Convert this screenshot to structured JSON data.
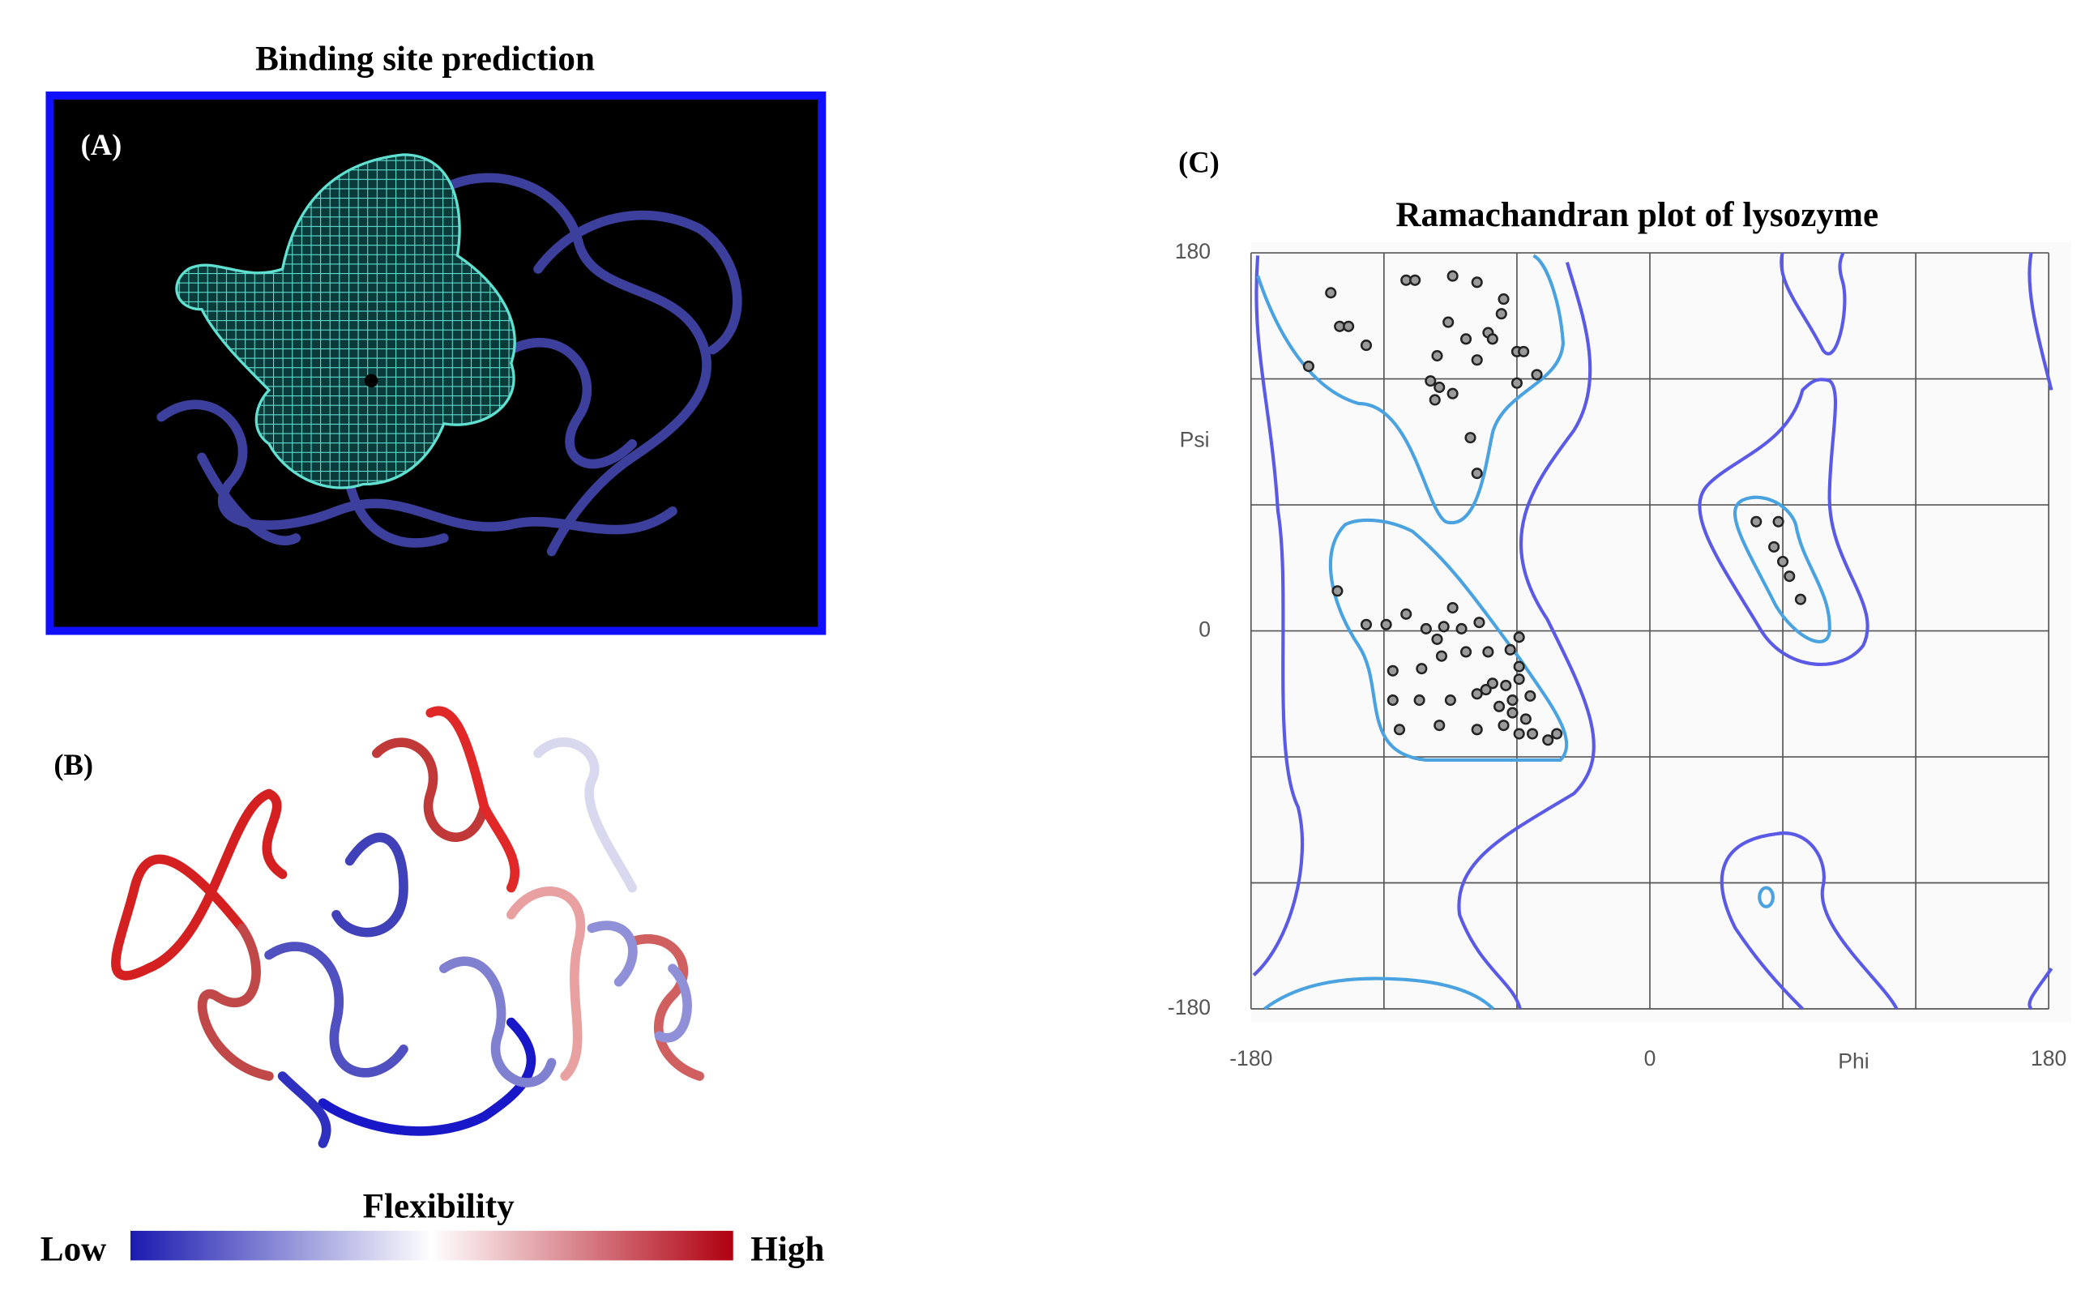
{
  "panels": {
    "a": {
      "label": "(A)",
      "title": "Binding site prediction"
    },
    "b": {
      "label": "(B)",
      "colorbar": {
        "title": "Flexibility",
        "low": "Low",
        "high": "High"
      }
    },
    "c": {
      "label": "(C)"
    }
  },
  "chart_data": {
    "type": "scatter",
    "title": "Ramachandran plot of lysozyme",
    "xlabel": "Phi",
    "ylabel": "Psi",
    "x": [
      -144,
      -140,
      -136,
      -128,
      -154,
      -110,
      -106,
      -89,
      -78,
      -66,
      -67,
      -91,
      -83,
      -73,
      -71,
      -96,
      -60,
      -57,
      -78,
      -51,
      -99,
      -95,
      -89,
      -60,
      -97,
      -81,
      -78,
      -141,
      -128,
      -119,
      -110,
      -101,
      -93,
      -89,
      -85,
      -77,
      -59,
      -116,
      -103,
      -94,
      -83,
      -73,
      -63,
      -59,
      -116,
      -104,
      -90,
      -78,
      -71,
      -65,
      -59,
      -68,
      -62,
      -56,
      -113,
      -95,
      -78,
      -66,
      -59,
      -53,
      -46,
      -42,
      -62,
      -54,
      -74,
      -96,
      48,
      58,
      56,
      60,
      63,
      68
    ],
    "y": [
      161,
      145,
      145,
      136,
      126,
      167,
      167,
      169,
      166,
      158,
      151,
      147,
      139,
      142,
      139,
      131,
      133,
      133,
      129,
      122,
      119,
      116,
      113,
      118,
      110,
      92,
      75,
      19,
      3,
      3,
      8,
      1,
      2,
      11,
      1,
      4,
      -3,
      -19,
      -18,
      -12,
      -10,
      -10,
      -9,
      -17,
      -33,
      -33,
      -33,
      -30,
      -25,
      -26,
      -23,
      -36,
      -39,
      -42,
      -47,
      -45,
      -47,
      -45,
      -49,
      -49,
      -52,
      -49,
      -33,
      -31,
      -28,
      -4,
      52,
      52,
      40,
      33,
      26,
      15
    ],
    "color": "#9a9a9a",
    "xlim": [
      -180,
      180
    ],
    "ylim": [
      -180,
      180
    ],
    "xticks": [
      -180,
      0,
      180
    ],
    "yticks": [
      -180,
      0,
      180
    ],
    "xgrid": [
      -180,
      -120,
      -60,
      0,
      60,
      120,
      180
    ],
    "ygrid": [
      -180,
      -120,
      -60,
      0,
      60,
      120,
      180
    ],
    "grid": true
  }
}
